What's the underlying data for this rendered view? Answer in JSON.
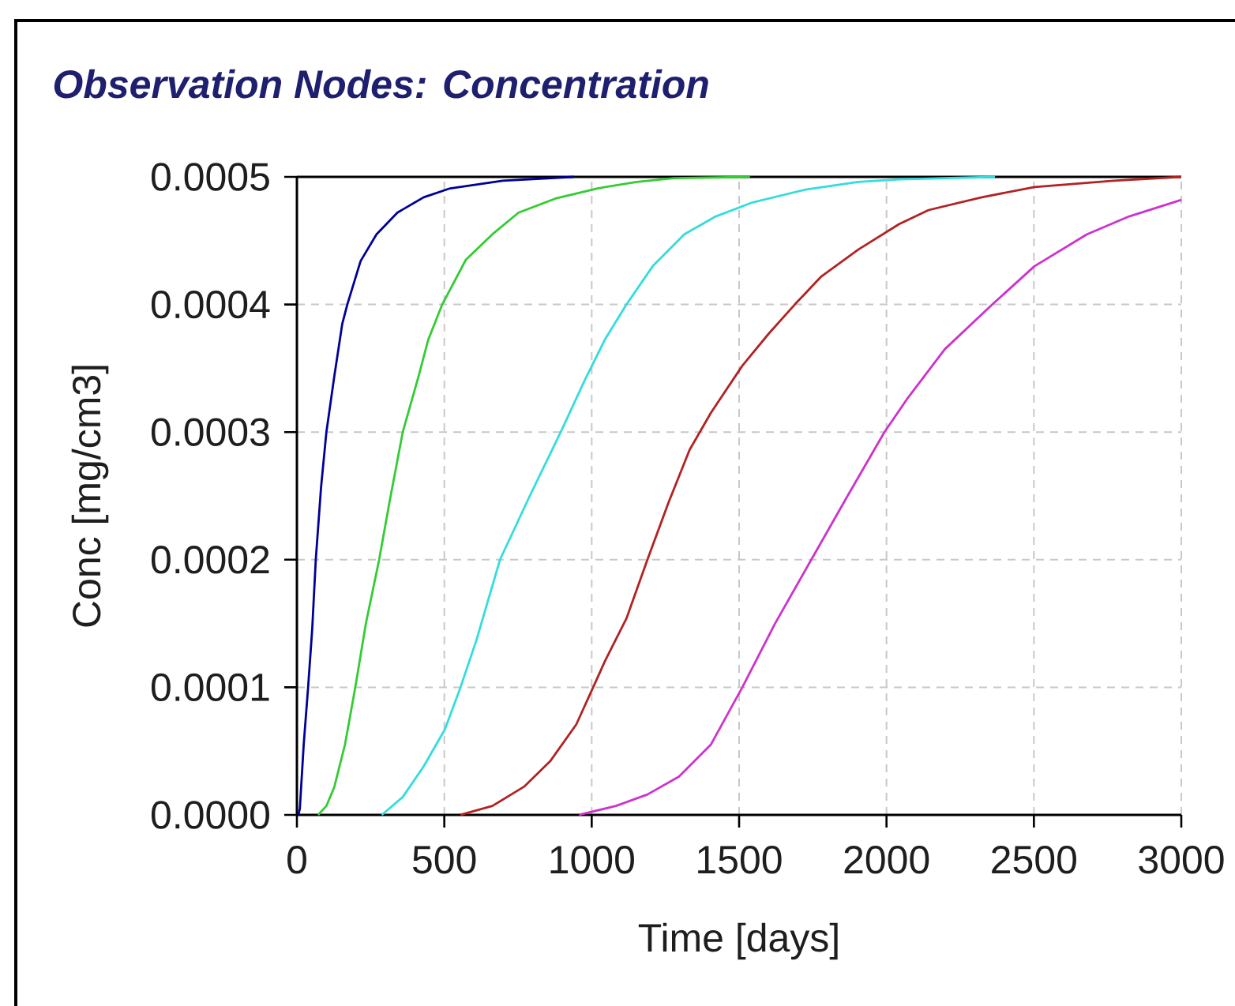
{
  "chart_data": {
    "type": "line",
    "title": "Observation Nodes: Concentration",
    "xlabel": "Time [days]",
    "ylabel": "Conc [mg/cm3]",
    "xlim": [
      0,
      3000
    ],
    "ylim": [
      0,
      0.0005
    ],
    "xticks": [
      0,
      500,
      1000,
      1500,
      2000,
      2500,
      3000
    ],
    "yticks": [
      {
        "value": 0,
        "label": "0.0000"
      },
      {
        "value": 0.0001,
        "label": "0.0001"
      },
      {
        "value": 0.0002,
        "label": "0.0002"
      },
      {
        "value": 0.0003,
        "label": "0.0003"
      },
      {
        "value": 0.0004,
        "label": "0.0004"
      },
      {
        "value": 0.0005,
        "label": "0.0005"
      }
    ],
    "grid": true,
    "series": [
      {
        "color": "#000099",
        "x": [
          5,
          10,
          23,
          38,
          52,
          64,
          82,
          100,
          127,
          154,
          171,
          216,
          270,
          341,
          430,
          520,
          698,
          940
        ],
        "values": [
          0,
          5e-06,
          5.5e-05,
          0.0001,
          0.000146,
          0.0002,
          0.000257,
          0.0003,
          0.000344,
          0.000385,
          0.0004,
          0.000434,
          0.000455,
          0.000472,
          0.000484,
          0.000491,
          0.000497,
          0.0005
        ]
      },
      {
        "color": "#33cc33",
        "x": [
          72,
          100,
          127,
          163,
          198,
          234,
          279,
          314,
          359,
          413,
          445,
          493,
          573,
          663,
          752,
          877,
          1020,
          1153,
          1279,
          1537
        ],
        "values": [
          0,
          7e-06,
          2.2e-05,
          5.5e-05,
          0.0001,
          0.00015,
          0.0002,
          0.000245,
          0.0003,
          0.000344,
          0.000372,
          0.0004,
          0.000435,
          0.000455,
          0.000472,
          0.000483,
          0.000491,
          0.000496,
          0.000499,
          0.0005
        ]
      },
      {
        "color": "#33dddd",
        "x": [
          288,
          359,
          430,
          502,
          555,
          609,
          689,
          790,
          895,
          975,
          1046,
          1118,
          1207,
          1314,
          1421,
          1546,
          1725,
          1904,
          2043,
          2368
        ],
        "values": [
          0,
          1.4e-05,
          3.8e-05,
          6.7e-05,
          0.0001,
          0.000137,
          0.0002,
          0.00025,
          0.0003,
          0.00034,
          0.000373,
          0.0004,
          0.00043,
          0.000455,
          0.000469,
          0.00048,
          0.00049,
          0.000496,
          0.000498,
          0.0005
        ]
      },
      {
        "color": "#b22222",
        "x": [
          555,
          663,
          770,
          859,
          948,
          1046,
          1118,
          1189,
          1261,
          1332,
          1404,
          1511,
          1600,
          1689,
          1779,
          1904,
          2043,
          2143,
          2323,
          2502,
          2770,
          3000
        ],
        "values": [
          0,
          7e-06,
          2.2e-05,
          4.2e-05,
          7.1e-05,
          0.000121,
          0.000154,
          0.0002,
          0.000245,
          0.000286,
          0.000315,
          0.000352,
          0.000377,
          0.0004,
          0.000422,
          0.000443,
          0.000463,
          0.000474,
          0.000484,
          0.000492,
          0.000497,
          0.0005
        ]
      },
      {
        "color": "#cc33cc",
        "x": [
          957,
          1082,
          1189,
          1296,
          1404,
          1511,
          1622,
          1745,
          1868,
          1993,
          2073,
          2198,
          2359,
          2502,
          2680,
          2823,
          3000
        ],
        "values": [
          0,
          7e-06,
          1.6e-05,
          3e-05,
          5.5e-05,
          0.0001,
          0.00015,
          0.0002,
          0.00025,
          0.0003,
          0.000327,
          0.000365,
          0.0004,
          0.00043,
          0.000455,
          0.000469,
          0.000482
        ]
      }
    ]
  }
}
